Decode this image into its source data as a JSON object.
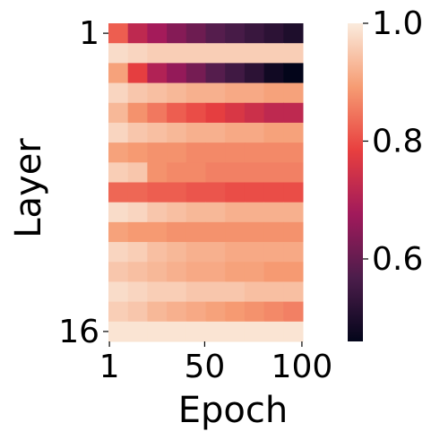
{
  "chart_data": {
    "type": "heatmap",
    "xlabel": "Epoch",
    "ylabel": "Layer",
    "x": [
      1,
      11,
      21,
      31,
      41,
      51,
      61,
      71,
      81,
      91
    ],
    "xlim": [
      0.5,
      100.5
    ],
    "xticks": [
      1,
      50,
      100
    ],
    "ylim": [
      0.5,
      16.5
    ],
    "yticks": [
      1,
      16
    ],
    "colormap": [
      "#03051a",
      "#4c1d4b",
      "#a11a5b",
      "#e83f3f",
      "#f69c73",
      "#faebdd"
    ],
    "clim": [
      0.46,
      1.0
    ],
    "cticks": [
      0.6,
      0.8,
      {
        "value": 1,
        "label": "1.0"
      }
    ],
    "values": [
      [
        0.82,
        0.72,
        0.68,
        0.64,
        0.61,
        0.58,
        0.56,
        0.54,
        0.52,
        0.5
      ],
      [
        0.98,
        0.97,
        0.96,
        0.96,
        0.96,
        0.96,
        0.96,
        0.96,
        0.96,
        0.96
      ],
      [
        0.9,
        0.78,
        0.7,
        0.66,
        0.62,
        0.58,
        0.55,
        0.52,
        0.48,
        0.46
      ],
      [
        0.97,
        0.95,
        0.94,
        0.93,
        0.92,
        0.92,
        0.91,
        0.91,
        0.9,
        0.9
      ],
      [
        0.93,
        0.88,
        0.85,
        0.82,
        0.8,
        0.78,
        0.76,
        0.74,
        0.72,
        0.72
      ],
      [
        0.97,
        0.95,
        0.94,
        0.93,
        0.92,
        0.92,
        0.91,
        0.91,
        0.9,
        0.9
      ],
      [
        0.9,
        0.89,
        0.88,
        0.88,
        0.87,
        0.87,
        0.87,
        0.87,
        0.87,
        0.87
      ],
      [
        0.96,
        0.95,
        0.88,
        0.87,
        0.87,
        0.86,
        0.86,
        0.86,
        0.86,
        0.86
      ],
      [
        0.83,
        0.83,
        0.82,
        0.82,
        0.81,
        0.81,
        0.8,
        0.8,
        0.8,
        0.8
      ],
      [
        0.98,
        0.97,
        0.95,
        0.94,
        0.93,
        0.93,
        0.92,
        0.92,
        0.92,
        0.92
      ],
      [
        0.9,
        0.89,
        0.89,
        0.88,
        0.88,
        0.88,
        0.88,
        0.88,
        0.88,
        0.88
      ],
      [
        0.97,
        0.96,
        0.94,
        0.93,
        0.92,
        0.92,
        0.91,
        0.91,
        0.91,
        0.91
      ],
      [
        0.95,
        0.94,
        0.93,
        0.92,
        0.91,
        0.91,
        0.9,
        0.9,
        0.89,
        0.89
      ],
      [
        0.98,
        0.97,
        0.96,
        0.96,
        0.95,
        0.95,
        0.95,
        0.94,
        0.94,
        0.94
      ],
      [
        0.96,
        0.95,
        0.93,
        0.92,
        0.91,
        0.9,
        0.89,
        0.88,
        0.87,
        0.86
      ],
      [
        0.99,
        0.99,
        0.99,
        0.99,
        0.99,
        0.99,
        0.99,
        0.99,
        0.99,
        0.99
      ]
    ]
  }
}
